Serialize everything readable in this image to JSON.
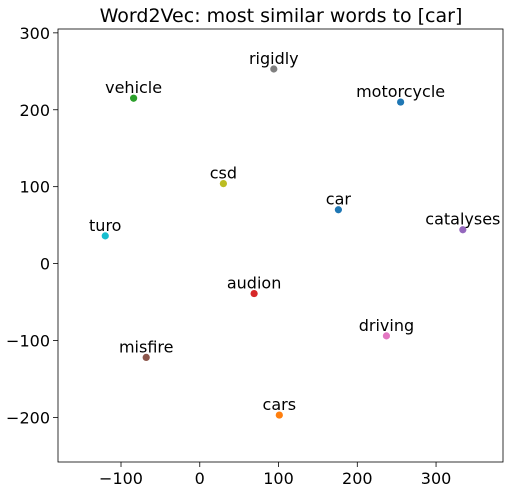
{
  "chart_data": {
    "type": "scatter",
    "title": "Word2Vec: most similar words to [car]",
    "xlabel": "",
    "ylabel": "",
    "xlim": [
      -180,
      385
    ],
    "ylim": [
      -258,
      305
    ],
    "xticks": [
      -100,
      0,
      100,
      200,
      300
    ],
    "yticks": [
      -200,
      -100,
      0,
      100,
      200,
      300
    ],
    "xtick_labels": [
      "−100",
      "0",
      "100",
      "200",
      "300"
    ],
    "ytick_labels": [
      "−200",
      "−100",
      "0",
      "100",
      "200",
      "300"
    ],
    "grid": false,
    "points": [
      {
        "label": "car",
        "x": 176,
        "y": 70,
        "color": "#1f77b4"
      },
      {
        "label": "cars",
        "x": 101,
        "y": -197,
        "color": "#ff7f0e"
      },
      {
        "label": "vehicle",
        "x": -84,
        "y": 215,
        "color": "#2ca02c"
      },
      {
        "label": "audion",
        "x": 69,
        "y": -39,
        "color": "#d62728"
      },
      {
        "label": "catalyses",
        "x": 334,
        "y": 44,
        "color": "#9467bd"
      },
      {
        "label": "misfire",
        "x": -68,
        "y": -122,
        "color": "#8c564b"
      },
      {
        "label": "driving",
        "x": 237,
        "y": -94,
        "color": "#e377c2"
      },
      {
        "label": "rigidly",
        "x": 94,
        "y": 253,
        "color": "#7f7f7f"
      },
      {
        "label": "csd",
        "x": 30,
        "y": 104,
        "color": "#bcbd22"
      },
      {
        "label": "turo",
        "x": -120,
        "y": 36,
        "color": "#17becf"
      },
      {
        "label": "motorcycle",
        "x": 255,
        "y": 210,
        "color": "#1f77b4"
      }
    ]
  }
}
